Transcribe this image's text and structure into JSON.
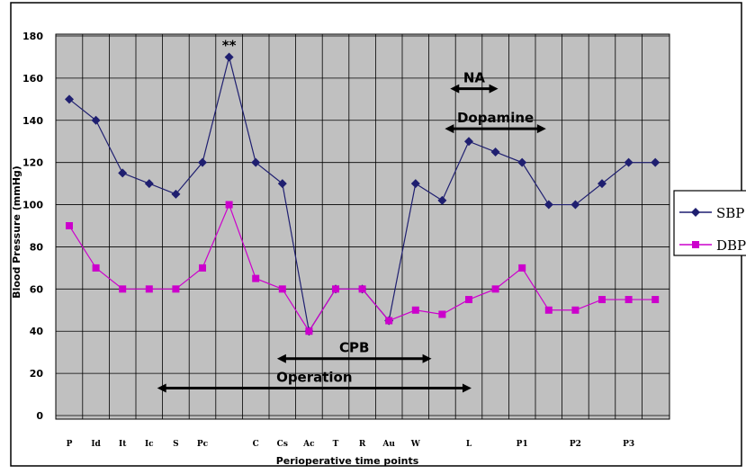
{
  "chart_data": {
    "type": "line",
    "xlabel": "Perioperative time points",
    "ylabel": "Blood Pressure (mmHg)",
    "ylim": [
      0,
      180
    ],
    "yticks": [
      0,
      20,
      40,
      60,
      80,
      100,
      120,
      140,
      160,
      180
    ],
    "grid": true,
    "legend_position": "right",
    "categories": [
      "P",
      "Id",
      "It",
      "Ic",
      "S",
      "Pc",
      "",
      "C",
      "Cs",
      "Ac",
      "T",
      "R",
      "Au",
      "W",
      "",
      "L",
      "",
      "P1",
      "",
      "P2",
      "",
      "P3",
      ""
    ],
    "series": [
      {
        "name": "SBP",
        "color": "#1f1f70",
        "marker": "diamond",
        "values": [
          150,
          140,
          115,
          110,
          105,
          120,
          170,
          120,
          110,
          40,
          60,
          60,
          45,
          110,
          102,
          130,
          125,
          120,
          100,
          100,
          110,
          120,
          120
        ]
      },
      {
        "name": "DBP",
        "color": "#cc00cc",
        "marker": "square",
        "values": [
          90,
          70,
          60,
          60,
          60,
          70,
          100,
          65,
          60,
          40,
          60,
          60,
          45,
          50,
          48,
          55,
          60,
          70,
          50,
          50,
          55,
          55,
          55
        ]
      }
    ],
    "annotations": [
      {
        "text": "**",
        "x_index": 6,
        "y": 170
      },
      {
        "text": "NA",
        "x_from": 14.3,
        "x_to": 16.1,
        "y": 155
      },
      {
        "text": "Dopamine",
        "x_from": 14.1,
        "x_to": 17.9,
        "y": 136
      },
      {
        "text": "CPB",
        "x_from": 7.8,
        "x_to": 13.6,
        "y": 27
      },
      {
        "text": "Operation",
        "x_from": 3.3,
        "x_to": 15.1,
        "y": 13
      }
    ]
  }
}
